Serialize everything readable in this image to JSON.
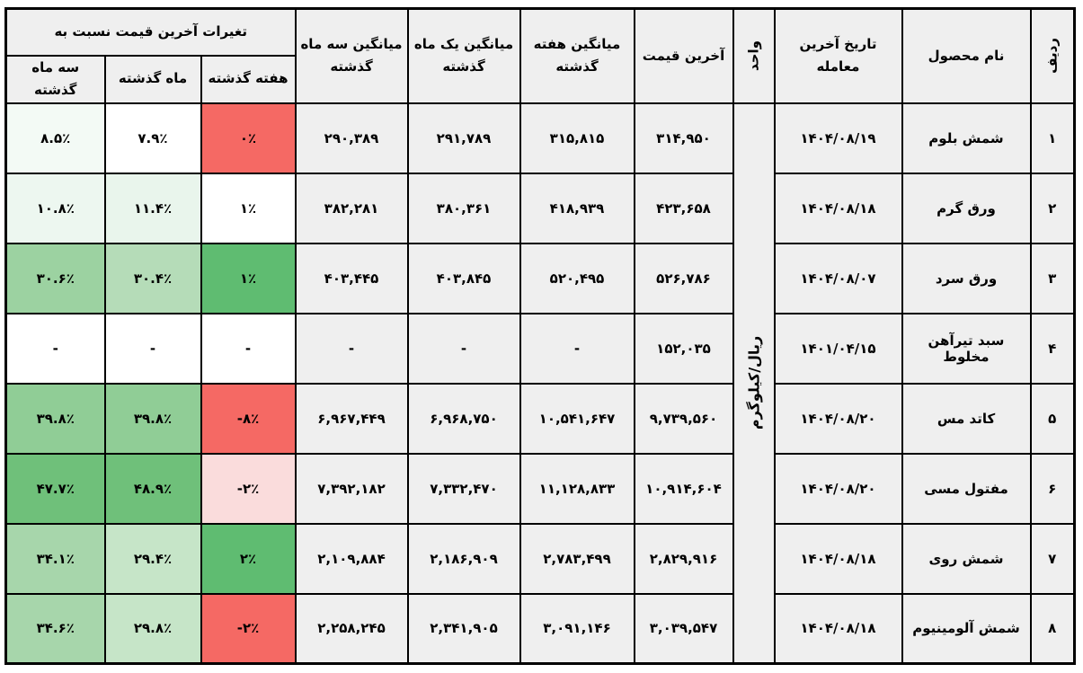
{
  "table": {
    "headers": {
      "row_no": "ردیف",
      "product": "نام محصول",
      "last_trade_date": "تاریخ آخرین معامله",
      "unit": "واحد",
      "last_price": "آخرین قیمت",
      "week_avg": "میانگین هفته گذشته",
      "month_avg": "میانگین یک ماه گذشته",
      "three_month_avg": "میانگین سه ماه گذشته",
      "changes_group": "تغیرات آخرین قیمت نسبت به",
      "chg_week": "هفته گذشته",
      "chg_month": "ماه گذشته",
      "chg_3month": "سه ماه گذشته"
    },
    "unit_value": "ریال/کیلوگرم",
    "rows": [
      {
        "num": "۱",
        "name": "شمش بلوم",
        "date": "۱۴۰۴/۰۸/۱۹",
        "price": "۳۱۴,۹۵۰",
        "week_avg": "۳۱۵,۸۱۵",
        "month_avg": "۲۹۱,۷۸۹",
        "three_month_avg": "۲۹۰,۳۸۹",
        "chg_week": {
          "text": "۰٪",
          "bg": "#f56964"
        },
        "chg_month": {
          "text": "۷.۹٪",
          "bg": "#ffffff"
        },
        "chg_3month": {
          "text": "۸.۵٪",
          "bg": "#f3faf5"
        }
      },
      {
        "num": "۲",
        "name": "ورق گرم",
        "date": "۱۴۰۴/۰۸/۱۸",
        "price": "۴۲۳,۶۵۸",
        "week_avg": "۴۱۸,۹۳۹",
        "month_avg": "۳۸۰,۳۶۱",
        "three_month_avg": "۳۸۲,۲۸۱",
        "chg_week": {
          "text": "۱٪",
          "bg": "#ffffff"
        },
        "chg_month": {
          "text": "۱۱.۴٪",
          "bg": "#e9f5ec"
        },
        "chg_3month": {
          "text": "۱۰.۸٪",
          "bg": "#edf7f0"
        }
      },
      {
        "num": "۳",
        "name": "ورق سرد",
        "date": "۱۴۰۴/۰۸/۰۷",
        "price": "۵۲۶,۷۸۶",
        "week_avg": "۵۲۰,۴۹۵",
        "month_avg": "۴۰۳,۸۴۵",
        "three_month_avg": "۴۰۳,۴۴۵",
        "chg_week": {
          "text": "۱٪",
          "bg": "#5fbc71"
        },
        "chg_month": {
          "text": "۳۰.۴٪",
          "bg": "#b5dcb8"
        },
        "chg_3month": {
          "text": "۳۰.۶٪",
          "bg": "#9cd2a1"
        }
      },
      {
        "num": "۴",
        "name": "سبد تیرآهن مخلوط",
        "date": "۱۴۰۱/۰۴/۱۵",
        "price": "۱۵۲,۰۳۵",
        "week_avg": "-",
        "month_avg": "-",
        "three_month_avg": "-",
        "chg_week": {
          "text": "-",
          "bg": "#ffffff"
        },
        "chg_month": {
          "text": "-",
          "bg": "#ffffff"
        },
        "chg_3month": {
          "text": "-",
          "bg": "#ffffff"
        }
      },
      {
        "num": "۵",
        "name": "کاتد مس",
        "date": "۱۴۰۴/۰۸/۲۰",
        "price": "۹,۷۳۹,۵۶۰",
        "week_avg": "۱۰,۵۴۱,۶۴۷",
        "month_avg": "۶,۹۶۸,۷۵۰",
        "three_month_avg": "۶,۹۶۷,۴۴۹",
        "chg_week": {
          "text": "-۸٪",
          "bg": "#f56964"
        },
        "chg_month": {
          "text": "۳۹.۸٪",
          "bg": "#90cd96"
        },
        "chg_3month": {
          "text": "۳۹.۸٪",
          "bg": "#90cd96"
        }
      },
      {
        "num": "۶",
        "name": "مفتول مسی",
        "date": "۱۴۰۴/۰۸/۲۰",
        "price": "۱۰,۹۱۴,۶۰۴",
        "week_avg": "۱۱,۱۲۸,۸۳۳",
        "month_avg": "۷,۳۳۲,۴۷۰",
        "three_month_avg": "۷,۳۹۲,۱۸۲",
        "chg_week": {
          "text": "-۲٪",
          "bg": "#fadcdc"
        },
        "chg_month": {
          "text": "۴۸.۹٪",
          "bg": "#6fc07a"
        },
        "chg_3month": {
          "text": "۴۷.۷٪",
          "bg": "#6fc07a"
        }
      },
      {
        "num": "۷",
        "name": "شمش روی",
        "date": "۱۴۰۴/۰۸/۱۸",
        "price": "۲,۸۲۹,۹۱۶",
        "week_avg": "۲,۷۸۳,۴۹۹",
        "month_avg": "۲,۱۸۶,۹۰۹",
        "three_month_avg": "۲,۱۰۹,۸۸۴",
        "chg_week": {
          "text": "۲٪",
          "bg": "#5fbc71"
        },
        "chg_month": {
          "text": "۲۹.۴٪",
          "bg": "#c6e5c8"
        },
        "chg_3month": {
          "text": "۳۴.۱٪",
          "bg": "#a7d6ab"
        }
      },
      {
        "num": "۸",
        "name": "شمش آلومینیوم",
        "date": "۱۴۰۴/۰۸/۱۸",
        "price": "۳,۰۳۹,۵۴۷",
        "week_avg": "۳,۰۹۱,۱۴۶",
        "month_avg": "۲,۳۴۱,۹۰۵",
        "three_month_avg": "۲,۲۵۸,۲۴۵",
        "chg_week": {
          "text": "-۲٪",
          "bg": "#f56964"
        },
        "chg_month": {
          "text": "۲۹.۸٪",
          "bg": "#c6e5c8"
        },
        "chg_3month": {
          "text": "۳۴.۶٪",
          "bg": "#a7d6ab"
        }
      }
    ]
  },
  "colors": {
    "cell_gray": "#efefef",
    "negative_red": "#f56964",
    "negative_pink": "#fadcdc",
    "positive_green_strong": "#5fbc71",
    "border_black": "#000000",
    "cell_white": "#ffffff"
  },
  "chart_data": {
    "type": "table",
    "title": "",
    "columns": [
      "ردیف",
      "نام محصول",
      "تاریخ آخرین معامله",
      "واحد",
      "آخرین قیمت",
      "میانگین هفته گذشته",
      "میانگین یک ماه گذشته",
      "میانگین سه ماه گذشته",
      "تغیرات نسبت به هفته گذشته",
      "تغیرات نسبت به ماه گذشته",
      "تغیرات نسبت به سه ماه گذشته"
    ],
    "rows": [
      [
        "۱",
        "شمش بلوم",
        "۱۴۰۴/۰۸/۱۹",
        "ریال/کیلوگرم",
        "۳۱۴,۹۵۰",
        "۳۱۵,۸۱۵",
        "۲۹۱,۷۸۹",
        "۲۹۰,۳۸۹",
        "۰٪",
        "۷.۹٪",
        "۸.۵٪"
      ],
      [
        "۲",
        "ورق گرم",
        "۱۴۰۴/۰۸/۱۸",
        "ریال/کیلوگرم",
        "۴۲۳,۶۵۸",
        "۴۱۸,۹۳۹",
        "۳۸۰,۳۶۱",
        "۳۸۲,۲۸۱",
        "۱٪",
        "۱۱.۴٪",
        "۱۰.۸٪"
      ],
      [
        "۳",
        "ورق سرد",
        "۱۴۰۴/۰۸/۰۷",
        "ریال/کیلوگرم",
        "۵۲۶,۷۸۶",
        "۵۲۰,۴۹۵",
        "۴۰۳,۸۴۵",
        "۴۰۳,۴۴۵",
        "۱٪",
        "۳۰.۴٪",
        "۳۰.۶٪"
      ],
      [
        "۴",
        "سبد تیرآهن مخلوط",
        "۱۴۰۱/۰۴/۱۵",
        "ریال/کیلوگرم",
        "۱۵۲,۰۳۵",
        "-",
        "-",
        "-",
        "-",
        "-",
        "-"
      ],
      [
        "۵",
        "کاتد مس",
        "۱۴۰۴/۰۸/۲۰",
        "ریال/کیلوگرم",
        "۹,۷۳۹,۵۶۰",
        "۱۰,۵۴۱,۶۴۷",
        "۶,۹۶۸,۷۵۰",
        "۶,۹۶۷,۴۴۹",
        "-۸٪",
        "۳۹.۸٪",
        "۳۹.۸٪"
      ],
      [
        "۶",
        "مفتول مسی",
        "۱۴۰۴/۰۸/۲۰",
        "ریال/کیلوگرم",
        "۱۰,۹۱۴,۶۰۴",
        "۱۱,۱۲۸,۸۳۳",
        "۷,۳۳۲,۴۷۰",
        "۷,۳۹۲,۱۸۲",
        "-۲٪",
        "۴۸.۹٪",
        "۴۷.۷٪"
      ],
      [
        "۷",
        "شمش روی",
        "۱۴۰۴/۰۸/۱۸",
        "ریال/کیلوگرم",
        "۲,۸۲۹,۹۱۶",
        "۲,۷۸۳,۴۹۹",
        "۲,۱۸۶,۹۰۹",
        "۲,۱۰۹,۸۸۴",
        "۲٪",
        "۲۹.۴٪",
        "۳۴.۱٪"
      ],
      [
        "۸",
        "شمش آلومینیوم",
        "۱۴۰۴/۰۸/۱۸",
        "ریال/کیلوگرم",
        "۳,۰۳۹,۵۴۷",
        "۳,۰۹۱,۱۴۶",
        "۲,۳۴۱,۹۰۵",
        "۲,۲۵۸,۲۴۵",
        "-۲٪",
        "۲۹.۸٪",
        "۳۴.۶٪"
      ]
    ]
  }
}
